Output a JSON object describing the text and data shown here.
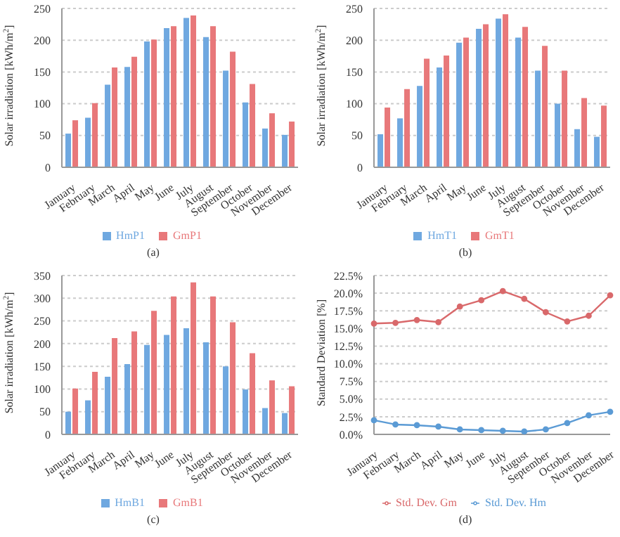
{
  "chart_data": [
    {
      "type": "bar",
      "ylabel": "Solar irradiation [kWh/m$^{2}$]",
      "categories": [
        "January",
        "February",
        "March",
        "April",
        "May",
        "June",
        "July",
        "August",
        "September",
        "October",
        "November",
        "December"
      ],
      "series": [
        {
          "name": "HmP1",
          "color": "#6fa8e0",
          "values": [
            53,
            78,
            130,
            158,
            198,
            219,
            235,
            205,
            152,
            102,
            61,
            51
          ]
        },
        {
          "name": "GmP1",
          "color": "#e8787a",
          "values": [
            74,
            101,
            157,
            174,
            201,
            222,
            239,
            222,
            182,
            131,
            85,
            72
          ]
        }
      ],
      "ylim": [
        0,
        250
      ],
      "yticks": [
        0,
        50,
        100,
        150,
        200,
        250
      ],
      "grid": "y",
      "legend": "bottom",
      "annotations": [
        "(a)"
      ]
    },
    {
      "type": "bar",
      "ylabel": "Solar irradiation [kWh/m$^{2}$]",
      "categories": [
        "January",
        "February",
        "March",
        "April",
        "May",
        "June",
        "July",
        "August",
        "September",
        "October",
        "November",
        "December"
      ],
      "series": [
        {
          "name": "HmT1",
          "color": "#6fa8e0",
          "values": [
            52,
            77,
            128,
            157,
            196,
            218,
            234,
            204,
            152,
            100,
            60,
            48
          ]
        },
        {
          "name": "GmT1",
          "color": "#e8787a",
          "values": [
            94,
            123,
            171,
            176,
            204,
            225,
            241,
            221,
            191,
            152,
            109,
            97
          ]
        }
      ],
      "ylim": [
        0,
        250
      ],
      "yticks": [
        0,
        50,
        100,
        150,
        200,
        250
      ],
      "grid": "y",
      "legend": "bottom",
      "annotations": [
        "(b)"
      ]
    },
    {
      "type": "bar",
      "ylabel": "Solar irradiation [kWh/m$^{2}$]",
      "categories": [
        "January",
        "February",
        "March",
        "April",
        "May",
        "June",
        "July",
        "August",
        "September",
        "October",
        "November",
        "December"
      ],
      "series": [
        {
          "name": "HmB1",
          "color": "#6fa8e0",
          "values": [
            50,
            75,
            127,
            155,
            197,
            219,
            234,
            203,
            150,
            99,
            58,
            47
          ]
        },
        {
          "name": "GmB1",
          "color": "#e8787a",
          "values": [
            101,
            138,
            212,
            227,
            272,
            304,
            335,
            304,
            247,
            179,
            119,
            106
          ]
        }
      ],
      "ylim": [
        0,
        350
      ],
      "yticks": [
        0,
        50,
        100,
        150,
        200,
        250,
        300,
        350
      ],
      "grid": "y",
      "legend": "bottom",
      "annotations": [
        "(c)"
      ]
    },
    {
      "type": "line",
      "ylabel": "Standard Deviation [%]",
      "categories": [
        "January",
        "February",
        "March",
        "April",
        "May",
        "June",
        "July",
        "August",
        "September",
        "October",
        "November",
        "December"
      ],
      "series": [
        {
          "name": "Std. Dev. Gm",
          "color": "#d9696b",
          "values": [
            15.7,
            15.8,
            16.2,
            15.9,
            18.1,
            19.0,
            20.3,
            19.2,
            17.3,
            16.0,
            16.8,
            19.7
          ]
        },
        {
          "name": "Std. Dev. Hm",
          "color": "#5b9bd5",
          "values": [
            2.0,
            1.4,
            1.3,
            1.1,
            0.7,
            0.6,
            0.5,
            0.4,
            0.7,
            1.6,
            2.7,
            3.2
          ]
        }
      ],
      "ylim": [
        0,
        22.5
      ],
      "yticks": [
        {
          "value": 0,
          "label": "0.0%"
        },
        {
          "value": 2.5,
          "label": "2.5%"
        },
        {
          "value": 5,
          "label": "5.0%"
        },
        {
          "value": 7.5,
          "label": "7.5%"
        },
        {
          "value": 10,
          "label": "10.0%"
        },
        {
          "value": 12.5,
          "label": "12.5%"
        },
        {
          "value": 15,
          "label": "15.0%"
        },
        {
          "value": 17.5,
          "label": "17.5%"
        },
        {
          "value": 20,
          "label": "20.0%"
        },
        {
          "value": 22.5,
          "label": "22.5%"
        }
      ],
      "grid": "y",
      "legend": "bottom",
      "marker": "circle",
      "annotations": [
        "(d)"
      ]
    }
  ]
}
